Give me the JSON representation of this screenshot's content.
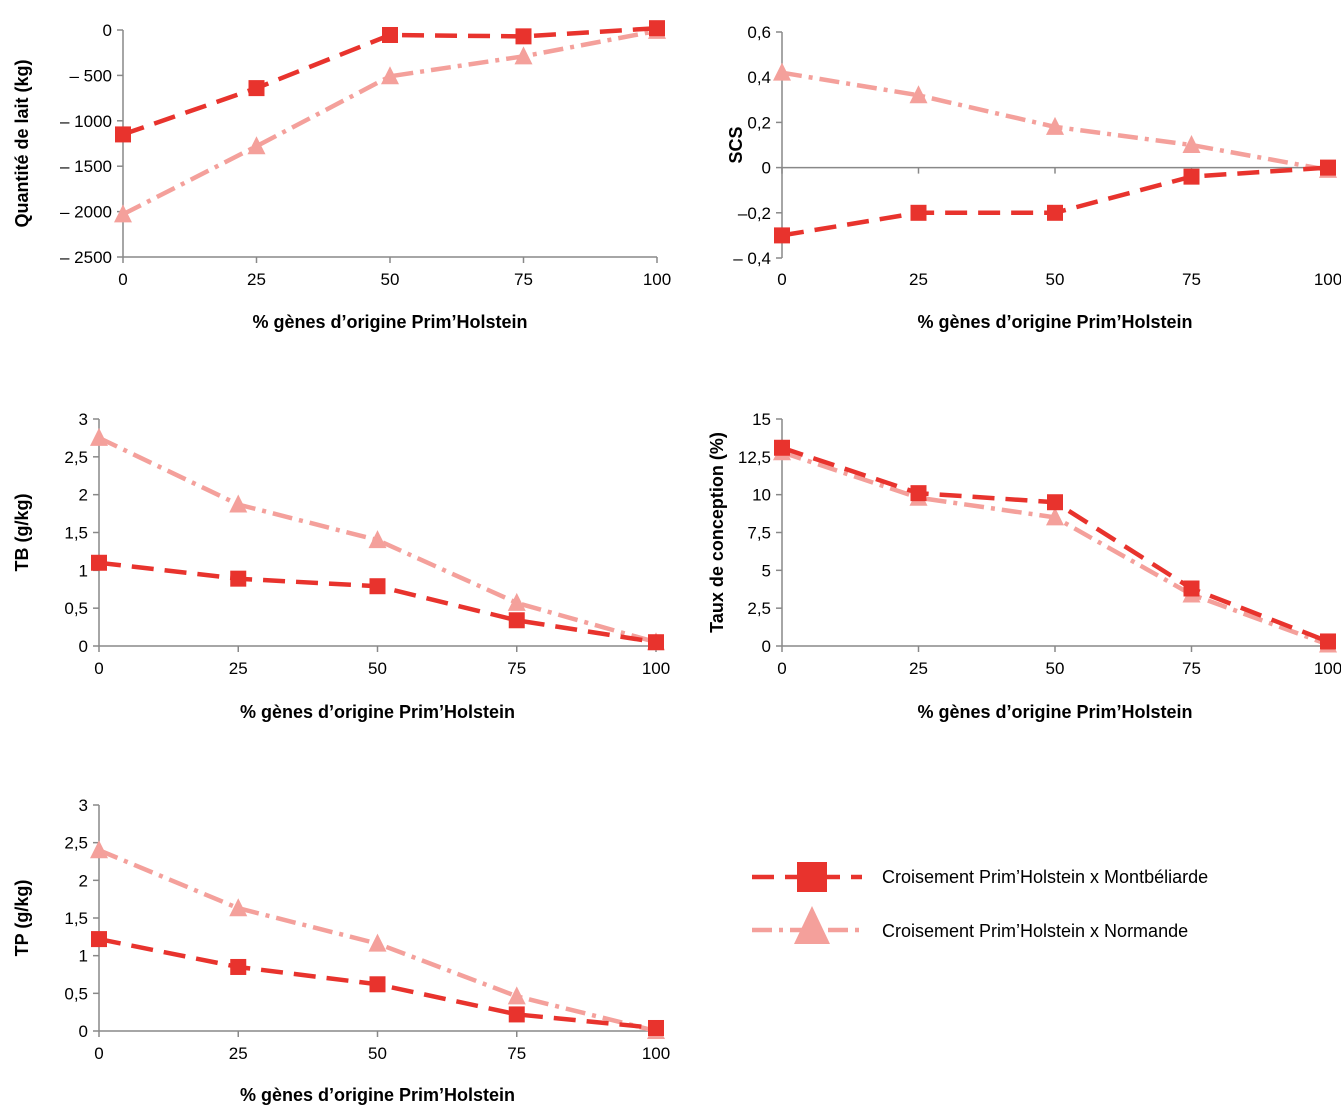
{
  "colors": {
    "montbeliarde": "#e8332d",
    "normande": "#f4a09b",
    "axis": "#888888"
  },
  "legend": {
    "montbeliarde": "Croisement Prim’Holstein x Montbéliarde",
    "normande": "Croisement Prim’Holstein x Normande"
  },
  "chart_data": [
    {
      "type": "line",
      "xlabel": "% gènes d’origine Prim’Holstein",
      "ylabel": "Quantité de lait (kg)",
      "x": [
        0,
        25,
        50,
        75,
        100
      ],
      "xticks": [
        "0",
        "25",
        "50",
        "75",
        "100"
      ],
      "ylim": [
        -2500,
        0
      ],
      "yticks": [
        0,
        -500,
        -1000,
        -1500,
        -2000,
        -2500
      ],
      "ytick_labels": [
        "0",
        "– 500",
        "– 1000",
        "– 1500",
        "– 2000",
        "– 2500"
      ],
      "series": [
        {
          "name": "Croisement Prim’Holstein x Montbéliarde",
          "values": [
            -1150,
            -640,
            -55,
            -70,
            20
          ]
        },
        {
          "name": "Croisement Prim’Holstein x Normande",
          "values": [
            -2030,
            -1280,
            -510,
            -290,
            -10
          ]
        }
      ]
    },
    {
      "type": "line",
      "xlabel": "% gènes d’origine Prim’Holstein",
      "ylabel": "SCS",
      "x": [
        0,
        25,
        50,
        75,
        100
      ],
      "xticks": [
        "0",
        "25",
        "50",
        "75",
        "100"
      ],
      "ylim": [
        -0.4,
        0.6
      ],
      "yticks": [
        0.6,
        0.4,
        0.2,
        0,
        -0.2,
        -0.4
      ],
      "ytick_labels": [
        "0,6",
        "0,4",
        "0,2",
        "0",
        "–0,2",
        "– 0,4"
      ],
      "series": [
        {
          "name": "Croisement Prim’Holstein x Montbéliarde",
          "values": [
            -0.3,
            -0.2,
            -0.2,
            -0.04,
            0.0
          ]
        },
        {
          "name": "Croisement Prim’Holstein x Normande",
          "values": [
            0.42,
            0.32,
            0.18,
            0.1,
            -0.01
          ]
        }
      ]
    },
    {
      "type": "line",
      "xlabel": "% gènes d’origine Prim’Holstein",
      "ylabel": "TB (g/kg)",
      "x": [
        0,
        25,
        50,
        75,
        100
      ],
      "xticks": [
        "0",
        "25",
        "50",
        "75",
        "100"
      ],
      "ylim": [
        0,
        3
      ],
      "yticks": [
        3,
        2.5,
        2,
        1.5,
        1,
        0.5,
        0
      ],
      "ytick_labels": [
        "3",
        "2,5",
        "2",
        "1,5",
        "1",
        "0,5",
        "0"
      ],
      "series": [
        {
          "name": "Croisement Prim’Holstein x Montbéliarde",
          "values": [
            1.1,
            0.89,
            0.79,
            0.34,
            0.05
          ]
        },
        {
          "name": "Croisement Prim’Holstein x Normande",
          "values": [
            2.75,
            1.87,
            1.4,
            0.57,
            0.05
          ]
        }
      ]
    },
    {
      "type": "line",
      "xlabel": "% gènes d’origine Prim’Holstein",
      "ylabel": "Taux de conception (%)",
      "x": [
        0,
        25,
        50,
        75,
        100
      ],
      "xticks": [
        "0",
        "25",
        "50",
        "75",
        "100"
      ],
      "ylim": [
        0,
        15
      ],
      "yticks": [
        15,
        12.5,
        10,
        7.5,
        5,
        2.5,
        0
      ],
      "ytick_labels": [
        "15",
        "12,5",
        "10",
        "7,5",
        "5",
        "2,5",
        "0"
      ],
      "series": [
        {
          "name": "Croisement Prim’Holstein x Montbéliarde",
          "values": [
            13.1,
            10.1,
            9.5,
            3.8,
            0.3
          ]
        },
        {
          "name": "Croisement Prim’Holstein x Normande",
          "values": [
            12.8,
            9.8,
            8.5,
            3.4,
            0.1
          ]
        }
      ]
    },
    {
      "type": "line",
      "xlabel": "% gènes d’origine Prim’Holstein",
      "ylabel": "TP (g/kg)",
      "x": [
        0,
        25,
        50,
        75,
        100
      ],
      "xticks": [
        "0",
        "25",
        "50",
        "75",
        "100"
      ],
      "ylim": [
        0,
        3
      ],
      "yticks": [
        3,
        2.5,
        2,
        1.5,
        1,
        0.5,
        0
      ],
      "ytick_labels": [
        "3",
        "2,5",
        "2",
        "1,5",
        "1",
        "0,5",
        "0"
      ],
      "series": [
        {
          "name": "Croisement Prim’Holstein x Montbéliarde",
          "values": [
            1.22,
            0.85,
            0.62,
            0.22,
            0.04
          ]
        },
        {
          "name": "Croisement Prim’Holstein x Normande",
          "values": [
            2.4,
            1.63,
            1.16,
            0.46,
            0.0
          ]
        }
      ]
    }
  ]
}
